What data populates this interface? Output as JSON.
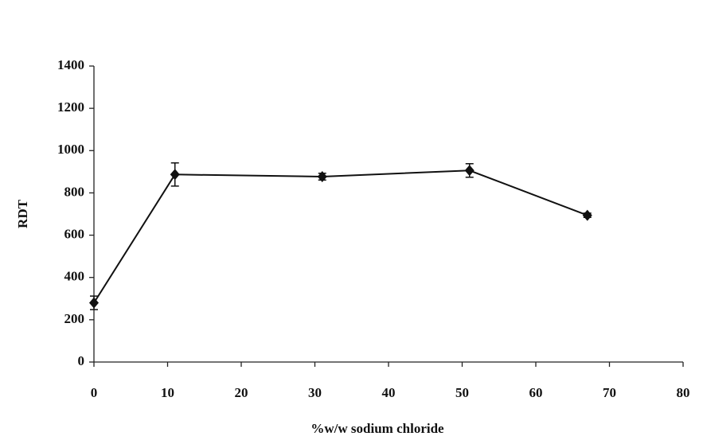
{
  "chart_data": {
    "type": "line",
    "x_label": "%w/w sodium chloride",
    "y_label": "RDT",
    "x": [
      0,
      11,
      31,
      51,
      67
    ],
    "values": [
      280,
      887,
      877,
      906,
      694
    ],
    "errors": [
      32,
      55,
      16,
      32,
      10
    ],
    "color": "#111111",
    "xlim": [
      0,
      80
    ],
    "xticks": [
      0,
      10,
      20,
      30,
      40,
      50,
      60,
      70,
      80
    ],
    "ylim": [
      0,
      1400
    ],
    "yticks": [
      0,
      200,
      400,
      600,
      800,
      1000,
      1200,
      1400
    ]
  }
}
